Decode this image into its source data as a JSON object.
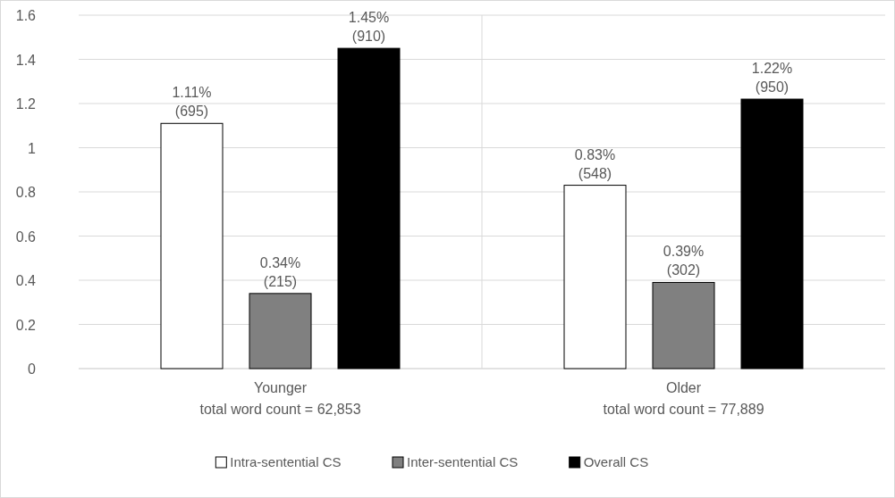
{
  "chart_data": {
    "type": "bar",
    "categories": [
      "Younger\ntotal word count = 62,853",
      "Older\ntotal word count = 77,889"
    ],
    "series": [
      {
        "name": "Intra-sentential CS",
        "color": "#ffffff",
        "values": [
          1.11,
          0.83
        ],
        "value_labels": [
          "1.11%\n(695)",
          "0.83%\n(548)"
        ]
      },
      {
        "name": "Inter-sentential CS",
        "color": "#808080",
        "values": [
          0.34,
          0.39
        ],
        "value_labels": [
          "0.34%\n(215)",
          "0.39%\n(302)"
        ]
      },
      {
        "name": "Overall CS",
        "color": "#000000",
        "values": [
          1.45,
          1.22
        ],
        "value_labels": [
          "1.45%\n(910)",
          "1.22%\n(950)"
        ]
      }
    ],
    "ylim": [
      0,
      1.6
    ],
    "yticks": [
      0,
      0.2,
      0.4,
      0.6,
      0.8,
      1,
      1.2,
      1.4,
      1.6
    ],
    "grid": true,
    "legend": "bottom"
  }
}
